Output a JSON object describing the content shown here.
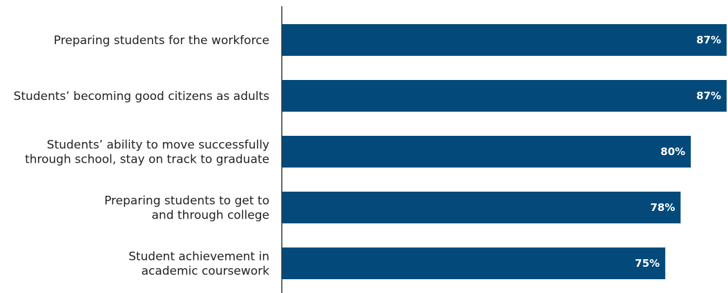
{
  "chart_data": {
    "type": "bar",
    "orientation": "horizontal",
    "categories": [
      [
        "Preparing students for the workforce"
      ],
      [
        "Students’ becoming good citizens as adults"
      ],
      [
        "Students’ ability to move successfully",
        "through school, stay on track to graduate"
      ],
      [
        "Preparing students to get to",
        "and through college"
      ],
      [
        "Student achievement in",
        "academic coursework"
      ]
    ],
    "values": [
      87,
      87,
      80,
      78,
      75
    ],
    "value_labels": [
      "87%",
      "87%",
      "80%",
      "78%",
      "75%"
    ],
    "xlim": [
      0,
      87
    ],
    "title": "",
    "xlabel": "",
    "ylabel": "",
    "grid": false,
    "legend": "none",
    "bar_color": "#034a7a",
    "axis_color": "#333333"
  }
}
